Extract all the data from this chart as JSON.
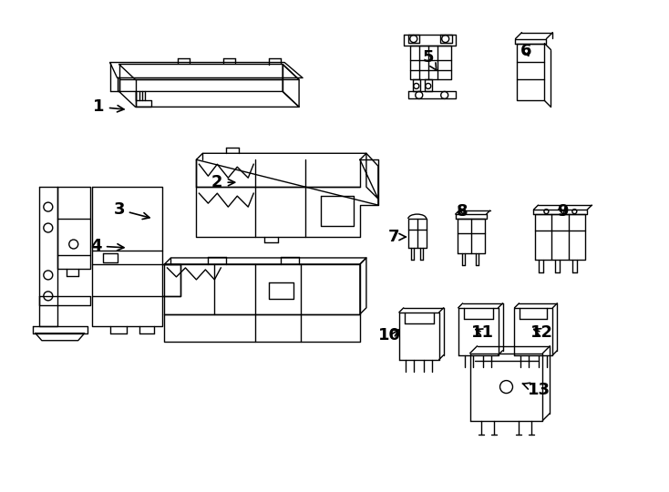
{
  "bg_color": "#ffffff",
  "line_color": "#000000",
  "figsize": [
    7.34,
    5.4
  ],
  "dpi": 100,
  "labels": [
    [
      1,
      108,
      423,
      140,
      420
    ],
    [
      2,
      238,
      340,
      262,
      340
    ],
    [
      3,
      130,
      310,
      168,
      300
    ],
    [
      4,
      105,
      270,
      140,
      268
    ],
    [
      5,
      470,
      478,
      480,
      462
    ],
    [
      6,
      578,
      485,
      582,
      475
    ],
    [
      7,
      432,
      280,
      450,
      280
    ],
    [
      8,
      508,
      308,
      510,
      300
    ],
    [
      9,
      618,
      308,
      620,
      300
    ],
    [
      10,
      428,
      172,
      442,
      180
    ],
    [
      11,
      530,
      175,
      518,
      180
    ],
    [
      12,
      595,
      175,
      582,
      180
    ],
    [
      13,
      592,
      112,
      570,
      120
    ]
  ]
}
